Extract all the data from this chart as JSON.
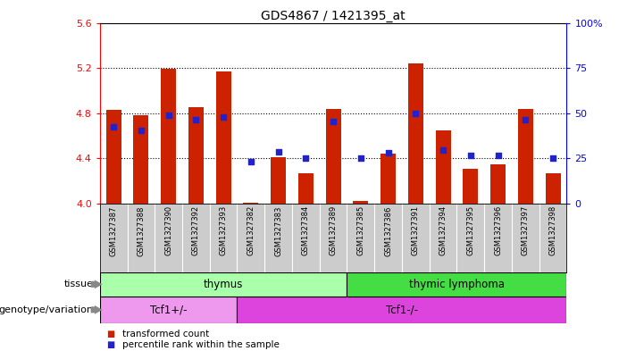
{
  "title": "GDS4867 / 1421395_at",
  "samples": [
    "GSM1327387",
    "GSM1327388",
    "GSM1327390",
    "GSM1327392",
    "GSM1327393",
    "GSM1327382",
    "GSM1327383",
    "GSM1327384",
    "GSM1327389",
    "GSM1327385",
    "GSM1327386",
    "GSM1327391",
    "GSM1327394",
    "GSM1327395",
    "GSM1327396",
    "GSM1327397",
    "GSM1327398"
  ],
  "red_bars": [
    4.83,
    4.78,
    5.19,
    4.85,
    5.17,
    4.01,
    4.41,
    4.27,
    4.84,
    4.02,
    4.44,
    5.24,
    4.65,
    4.31,
    4.35,
    4.84,
    4.27
  ],
  "blue_dots": [
    4.68,
    4.65,
    4.78,
    4.74,
    4.77,
    4.37,
    4.46,
    4.4,
    4.73,
    4.4,
    4.45,
    4.8,
    4.47,
    4.43,
    4.43,
    4.74,
    4.4
  ],
  "ylim_left": [
    4.0,
    5.6
  ],
  "yticks_left": [
    4.0,
    4.4,
    4.8,
    5.2,
    5.6
  ],
  "ylim_right": [
    0,
    100
  ],
  "yticks_right": [
    0,
    25,
    50,
    75,
    100
  ],
  "ytick_labels_right": [
    "0",
    "25",
    "50",
    "75",
    "100%"
  ],
  "bar_color": "#cc2200",
  "dot_color": "#2222cc",
  "tissue_labels": [
    "thymus",
    "thymic lymphoma"
  ],
  "thymus_count": 9,
  "tissue_colors": [
    "#aaffaa",
    "#44dd44"
  ],
  "genotype_labels": [
    "Tcf1+/-",
    "Tcf1-/-"
  ],
  "tcf1plus_count": 5,
  "genotype_colors": [
    "#ee99ee",
    "#dd44dd"
  ],
  "row1_label": "tissue",
  "row2_label": "genotype/variation",
  "legend_items": [
    "transformed count",
    "percentile rank within the sample"
  ],
  "legend_colors": [
    "#cc2200",
    "#2222cc"
  ],
  "dotted_lines": [
    4.4,
    4.8,
    5.2
  ],
  "background_color": "#ffffff",
  "tick_label_bg": "#cccccc",
  "arrow_color": "#888888"
}
